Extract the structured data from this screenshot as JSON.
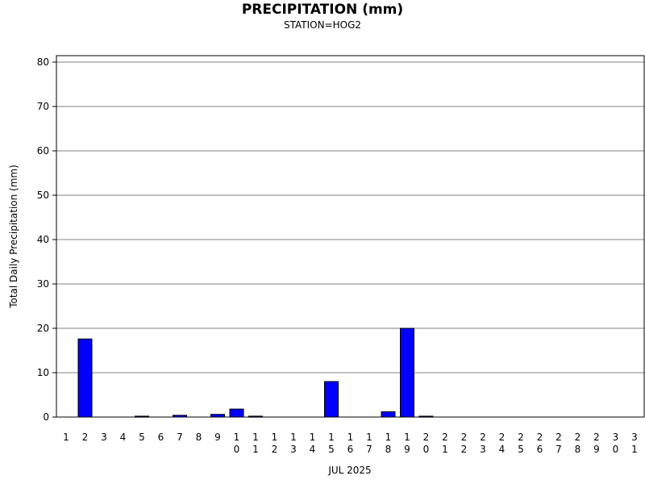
{
  "chart_data": {
    "type": "bar",
    "title": "PRECIPITATION (mm)",
    "subtitle": "STATION=HOG2",
    "ylabel": "Total Daily Precipitation (mm)",
    "xlabel": "JUL 2025",
    "ylim": [
      0,
      80
    ],
    "yticks": [
      0,
      10,
      20,
      30,
      40,
      50,
      60,
      70,
      80
    ],
    "grid": true,
    "categories": [
      "1",
      "2",
      "3",
      "4",
      "5",
      "6",
      "7",
      "8",
      "9",
      "10",
      "11",
      "12",
      "13",
      "14",
      "15",
      "16",
      "17",
      "18",
      "19",
      "20",
      "21",
      "22",
      "23",
      "24",
      "25",
      "26",
      "27",
      "28",
      "29",
      "30",
      "31"
    ],
    "values": [
      0,
      17.6,
      0,
      0,
      0.2,
      0,
      0.4,
      0,
      0.6,
      1.8,
      0.2,
      0,
      0,
      0,
      8.0,
      0,
      0,
      1.2,
      20.0,
      0.2,
      0,
      0,
      0,
      0,
      0,
      0,
      0,
      0,
      0,
      0,
      0
    ],
    "bar_color": "#0000ff"
  }
}
